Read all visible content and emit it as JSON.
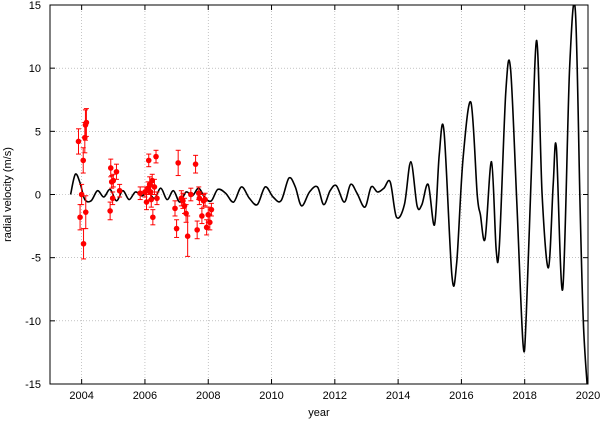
{
  "chart_data": {
    "type": "scatter",
    "xlabel": "year",
    "ylabel": "radial velocity (m/s)",
    "xlim": [
      2003,
      2020
    ],
    "ylim": [
      -15,
      15
    ],
    "xticks": [
      2004,
      2006,
      2008,
      2010,
      2012,
      2014,
      2016,
      2018,
      2020
    ],
    "yticks": [
      -15,
      -10,
      -5,
      0,
      5,
      10,
      15
    ],
    "grid": true,
    "legend": "none",
    "colors": {
      "model": "#000000",
      "observations": "#ff0000",
      "grid": "#a0a0a0"
    },
    "series": [
      {
        "type": "line",
        "x": [
          2003.65,
          2003.8,
          2003.95,
          2004.1,
          2004.3,
          2004.5,
          2004.7,
          2004.9,
          2005.1,
          2005.3,
          2005.5,
          2005.7,
          2005.9,
          2006.1,
          2006.3,
          2006.5,
          2006.7,
          2006.9,
          2007.1,
          2007.3,
          2007.5,
          2007.7,
          2007.9,
          2008.1,
          2008.3,
          2008.55,
          2008.8,
          2009.05,
          2009.3,
          2009.55,
          2009.8,
          2010.05,
          2010.3,
          2010.55,
          2010.75,
          2010.95,
          2011.2,
          2011.45,
          2011.65,
          2011.85,
          2012.05,
          2012.3,
          2012.5,
          2012.7,
          2012.95,
          2013.15,
          2013.35,
          2013.55,
          2013.75,
          2013.95,
          2014.2,
          2014.4,
          2014.6,
          2014.75,
          2014.95,
          2015.15,
          2015.3,
          2015.45,
          2015.7,
          2015.85,
          2016.05,
          2016.3,
          2016.5,
          2016.6,
          2016.75,
          2016.95,
          2017.1,
          2017.2,
          2017.4,
          2017.55,
          2017.75,
          2017.95,
          2018.05,
          2018.2,
          2018.38,
          2018.55,
          2018.75,
          2018.9,
          2019.0,
          2019.2,
          2019.42,
          2019.6,
          2019.75,
          2019.85,
          2019.97
        ],
        "y": [
          0.0,
          1.6,
          0.9,
          -0.4,
          -0.5,
          0.3,
          -0.2,
          0.4,
          -0.5,
          0.3,
          -0.4,
          0.2,
          -0.1,
          0.2,
          -0.3,
          0.5,
          -0.4,
          0.3,
          -0.6,
          0.2,
          -0.1,
          0.5,
          -0.3,
          -0.5,
          0.4,
          0.1,
          -0.6,
          0.6,
          -0.3,
          -0.8,
          0.6,
          -0.2,
          -0.5,
          1.3,
          0.6,
          -0.9,
          0.2,
          0.6,
          -0.8,
          0.3,
          0.7,
          -0.6,
          0.8,
          0.1,
          -1.0,
          0.6,
          0.2,
          0.5,
          1.0,
          -1.8,
          -0.8,
          2.6,
          -0.9,
          -0.8,
          0.8,
          -2.4,
          3.2,
          5.0,
          -6.4,
          -5.4,
          2.8,
          7.3,
          0.0,
          -1.6,
          -3.5,
          2.6,
          -4.4,
          -4.0,
          8.0,
          10.0,
          -0.6,
          -11.9,
          -9.5,
          1.0,
          12.2,
          0.0,
          -5.8,
          0.8,
          3.7,
          -7.5,
          10.0,
          14.6,
          -1.0,
          -10.0,
          -15.0
        ]
      },
      {
        "type": "scatter",
        "points": [
          {
            "x": 2003.9,
            "y": 4.2,
            "err": 1.0
          },
          {
            "x": 2003.95,
            "y": -1.8,
            "err": 1.0
          },
          {
            "x": 2004.0,
            "y": 0.0,
            "err": 0.8
          },
          {
            "x": 2004.05,
            "y": 2.7,
            "err": 1.0
          },
          {
            "x": 2004.1,
            "y": 4.5,
            "err": 1.2
          },
          {
            "x": 2004.12,
            "y": 5.5,
            "err": 1.2
          },
          {
            "x": 2004.15,
            "y": 5.7,
            "err": 1.1
          },
          {
            "x": 2004.06,
            "y": -3.9,
            "err": 1.2
          },
          {
            "x": 2004.13,
            "y": -1.4,
            "err": 1.3
          },
          {
            "x": 2004.9,
            "y": -1.3,
            "err": 0.7
          },
          {
            "x": 2004.92,
            "y": 2.1,
            "err": 0.7
          },
          {
            "x": 2004.95,
            "y": 1.0,
            "err": 0.5
          },
          {
            "x": 2005.0,
            "y": 1.1,
            "err": 0.5
          },
          {
            "x": 2005.1,
            "y": 1.8,
            "err": 0.6
          },
          {
            "x": 2005.2,
            "y": 0.3,
            "err": 0.5
          },
          {
            "x": 2004.98,
            "y": -0.3,
            "err": 0.5
          },
          {
            "x": 2005.85,
            "y": 0.1,
            "err": 0.5
          },
          {
            "x": 2006.0,
            "y": 0.2,
            "err": 0.4
          },
          {
            "x": 2006.05,
            "y": -0.6,
            "err": 0.6
          },
          {
            "x": 2006.1,
            "y": 0.5,
            "err": 0.5
          },
          {
            "x": 2006.12,
            "y": 2.7,
            "err": 0.5
          },
          {
            "x": 2006.15,
            "y": 0.8,
            "err": 0.6
          },
          {
            "x": 2006.18,
            "y": 0.2,
            "err": 0.6
          },
          {
            "x": 2006.2,
            "y": -0.4,
            "err": 0.6
          },
          {
            "x": 2006.23,
            "y": 1.1,
            "err": 0.5
          },
          {
            "x": 2006.25,
            "y": -1.8,
            "err": 0.6
          },
          {
            "x": 2006.3,
            "y": 0.6,
            "err": 0.6
          },
          {
            "x": 2006.35,
            "y": 3.0,
            "err": 0.5
          },
          {
            "x": 2006.38,
            "y": -0.3,
            "err": 0.5
          },
          {
            "x": 2006.95,
            "y": -1.1,
            "err": 0.6
          },
          {
            "x": 2007.0,
            "y": -2.7,
            "err": 0.7
          },
          {
            "x": 2007.05,
            "y": 2.5,
            "err": 1.0
          },
          {
            "x": 2007.15,
            "y": -0.3,
            "err": 0.6
          },
          {
            "x": 2007.2,
            "y": -0.5,
            "err": 0.6
          },
          {
            "x": 2007.25,
            "y": -0.9,
            "err": 0.6
          },
          {
            "x": 2007.3,
            "y": -1.5,
            "err": 0.7
          },
          {
            "x": 2007.35,
            "y": -3.3,
            "err": 1.6
          },
          {
            "x": 2007.45,
            "y": 0.0,
            "err": 0.5
          },
          {
            "x": 2007.6,
            "y": 2.4,
            "err": 0.7
          },
          {
            "x": 2007.65,
            "y": -2.8,
            "err": 0.7
          },
          {
            "x": 2007.7,
            "y": 0.1,
            "err": 0.5
          },
          {
            "x": 2007.72,
            "y": -0.3,
            "err": 0.5
          },
          {
            "x": 2007.8,
            "y": -1.7,
            "err": 0.6
          },
          {
            "x": 2007.85,
            "y": -0.5,
            "err": 0.5
          },
          {
            "x": 2007.9,
            "y": -0.4,
            "err": 0.5
          },
          {
            "x": 2007.95,
            "y": -2.6,
            "err": 0.6
          },
          {
            "x": 2008.0,
            "y": -1.6,
            "err": 0.6
          },
          {
            "x": 2008.05,
            "y": -2.2,
            "err": 0.6
          },
          {
            "x": 2008.1,
            "y": -1.2,
            "err": 0.5
          }
        ]
      }
    ]
  }
}
